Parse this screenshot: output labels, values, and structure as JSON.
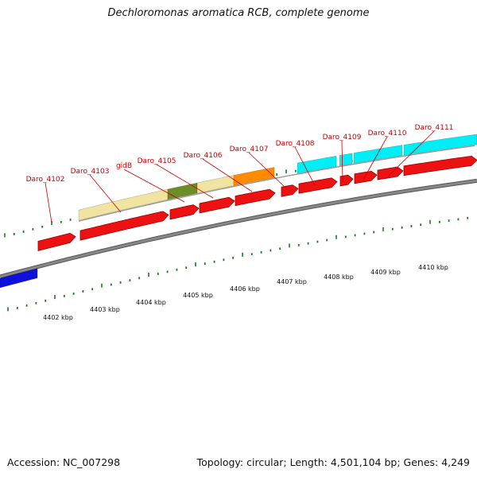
{
  "title": "Dechloromonas aromatica RCB, complete genome",
  "footer": {
    "accession": "Accession: NC_007298",
    "summary": "Topology: circular; Length: 4,501,104 bp; Genes: 4,249"
  },
  "colors": {
    "cds": "#ee1111",
    "lightYellow": "#f0e4a0",
    "olive": "#6e8e23",
    "orange": "#ff8c00",
    "cyan": "#00eef6",
    "blue": "#1010dd",
    "backbone": "#888888",
    "labelRed": "#cc0000",
    "tickGreen": "#1a7a1a"
  },
  "gene_labels": [
    "Daro_4102",
    "Daro_4103",
    "gidB",
    "Daro_4105",
    "Daro_4106",
    "Daro_4107",
    "Daro_4108",
    "Daro_4109",
    "Daro_4110",
    "Daro_4111"
  ],
  "kbp_labels": [
    "4402 kbp",
    "4403 kbp",
    "4404 kbp",
    "4405 kbp",
    "4406 kbp",
    "4407 kbp",
    "4408 kbp",
    "4409 kbp",
    "4410 kbp"
  ]
}
